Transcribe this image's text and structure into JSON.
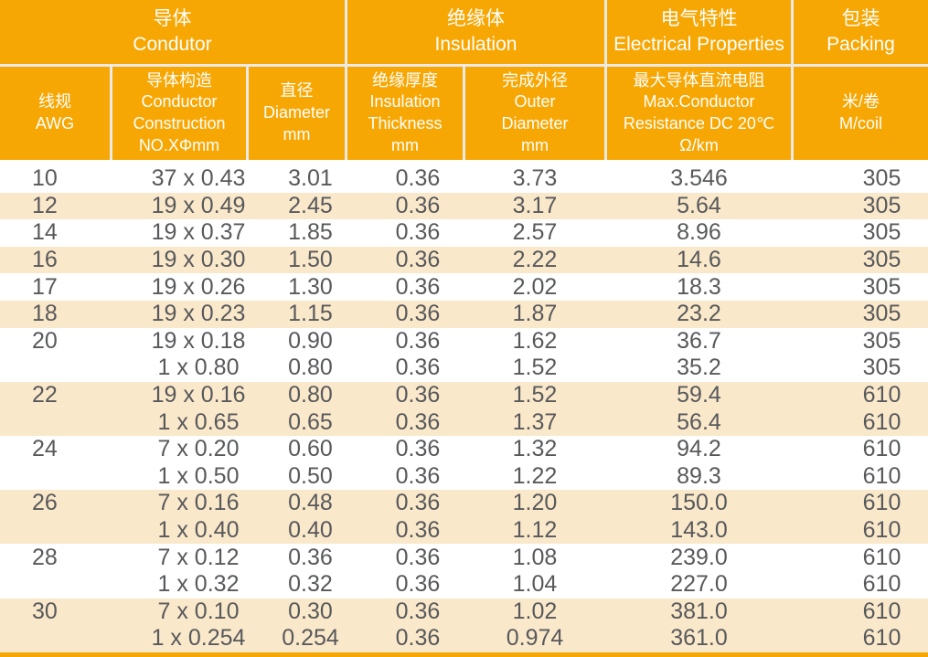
{
  "colors": {
    "accent_orange": "#F7A703",
    "row_band": "#FAE8CB",
    "header_divider": "#EBEAE6",
    "data_text": "#58595B",
    "header_text": "#FFFFFF"
  },
  "table": {
    "groups": [
      {
        "zh": "导体",
        "en": "Condutor"
      },
      {
        "zh": "绝缘体",
        "en": "Insulation"
      },
      {
        "zh": "电气特性",
        "en": "Electrical Properties"
      },
      {
        "zh": "包装",
        "en": "Packing"
      }
    ],
    "columns": [
      {
        "lines": [
          "线规",
          "AWG"
        ]
      },
      {
        "lines": [
          "导体构造",
          "Conductor",
          "Construction",
          "NO.XΦmm"
        ]
      },
      {
        "lines": [
          "直径",
          "Diameter",
          "mm"
        ]
      },
      {
        "lines": [
          "绝缘厚度",
          "Insulation",
          "Thickness",
          "mm"
        ]
      },
      {
        "lines": [
          "完成外径",
          "Outer",
          "Diameter",
          "mm"
        ]
      },
      {
        "lines": [
          "最大导体直流电阻",
          "Max.Conductor",
          "Resistance DC 20℃",
          "Ω/km"
        ]
      },
      {
        "lines": [
          "米/卷",
          "M/coil"
        ]
      }
    ],
    "rows": [
      {
        "band": false,
        "cells": [
          "10",
          "37 x 0.43",
          "3.01",
          "0.36",
          "3.73",
          "3.546",
          "305"
        ]
      },
      {
        "band": true,
        "cells": [
          "12",
          "19 x 0.49",
          "2.45",
          "0.36",
          "3.17",
          "5.64",
          "305"
        ]
      },
      {
        "band": false,
        "cells": [
          "14",
          "19 x 0.37",
          "1.85",
          "0.36",
          "2.57",
          "8.96",
          "305"
        ]
      },
      {
        "band": true,
        "cells": [
          "16",
          "19 x 0.30",
          "1.50",
          "0.36",
          "2.22",
          "14.6",
          "305"
        ]
      },
      {
        "band": false,
        "cells": [
          "17",
          "19 x 0.26",
          "1.30",
          "0.36",
          "2.02",
          "18.3",
          "305"
        ]
      },
      {
        "band": true,
        "cells": [
          "18",
          "19 x 0.23",
          "1.15",
          "0.36",
          "1.87",
          "23.2",
          "305"
        ]
      },
      {
        "band": false,
        "cells": [
          "20",
          "19 x 0.18",
          "0.90",
          "0.36",
          "1.62",
          "36.7",
          "305"
        ]
      },
      {
        "band": false,
        "cells": [
          "",
          "1 x 0.80",
          "0.80",
          "0.36",
          "1.52",
          "35.2",
          "305"
        ]
      },
      {
        "band": true,
        "cells": [
          "22",
          "19 x 0.16",
          "0.80",
          "0.36",
          "1.52",
          "59.4",
          "610"
        ]
      },
      {
        "band": true,
        "cells": [
          "",
          "1 x 0.65",
          "0.65",
          "0.36",
          "1.37",
          "56.4",
          "610"
        ]
      },
      {
        "band": false,
        "cells": [
          "24",
          "7 x 0.20",
          "0.60",
          "0.36",
          "1.32",
          "94.2",
          "610"
        ]
      },
      {
        "band": false,
        "cells": [
          "",
          "1 x 0.50",
          "0.50",
          "0.36",
          "1.22",
          "89.3",
          "610"
        ]
      },
      {
        "band": true,
        "cells": [
          "26",
          "7 x 0.16",
          "0.48",
          "0.36",
          "1.20",
          "150.0",
          "610"
        ]
      },
      {
        "band": true,
        "cells": [
          "",
          "1 x 0.40",
          "0.40",
          "0.36",
          "1.12",
          "143.0",
          "610"
        ]
      },
      {
        "band": false,
        "cells": [
          "28",
          "7 x 0.12",
          "0.36",
          "0.36",
          "1.08",
          "239.0",
          "610"
        ]
      },
      {
        "band": false,
        "cells": [
          "",
          "1 x 0.32",
          "0.32",
          "0.36",
          "1.04",
          "227.0",
          "610"
        ]
      },
      {
        "band": true,
        "cells": [
          "30",
          "7 x 0.10",
          "0.30",
          "0.36",
          "1.02",
          "381.0",
          "610"
        ]
      },
      {
        "band": true,
        "cells": [
          "",
          "1 x 0.254",
          "0.254",
          "0.36",
          "0.974",
          "361.0",
          "610"
        ]
      }
    ]
  }
}
